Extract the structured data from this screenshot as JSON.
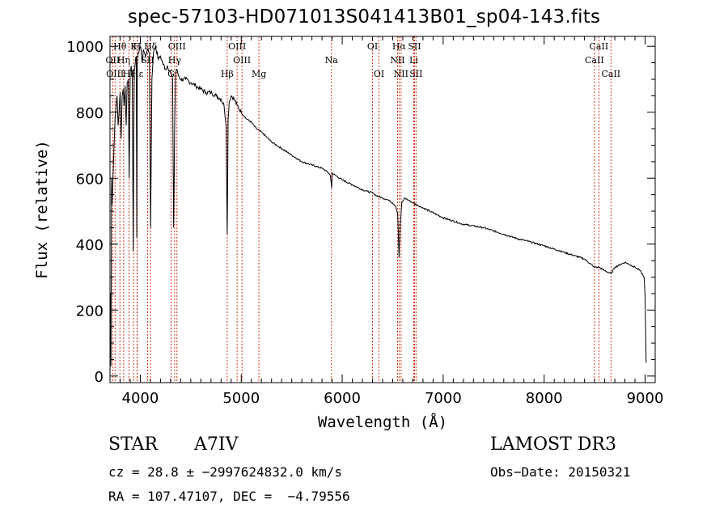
{
  "chart_data": {
    "type": "line",
    "title": "spec-57103-HD071013S041413B01_sp04-143.fits",
    "xlabel": "Wavelength (Å)",
    "ylabel": "Flux (relative)",
    "xlim": [
      3700,
      9100
    ],
    "ylim": [
      -20,
      1030
    ],
    "xticks": [
      4000,
      5000,
      6000,
      7000,
      8000,
      9000
    ],
    "yticks": [
      0,
      200,
      400,
      600,
      800,
      1000
    ],
    "series": [
      {
        "name": "spectrum",
        "x": [
          3700,
          3705,
          3710,
          3715,
          3720,
          3730,
          3740,
          3750,
          3760,
          3770,
          3780,
          3790,
          3800,
          3810,
          3820,
          3830,
          3840,
          3850,
          3860,
          3870,
          3880,
          3890,
          3900,
          3910,
          3920,
          3930,
          3935,
          3940,
          3950,
          3960,
          3965,
          3970,
          3980,
          3990,
          4000,
          4010,
          4020,
          4030,
          4050,
          4070,
          4090,
          4102,
          4115,
          4130,
          4150,
          4180,
          4200,
          4220,
          4250,
          4270,
          4300,
          4320,
          4330,
          4340,
          4350,
          4360,
          4380,
          4400,
          4450,
          4500,
          4550,
          4600,
          4650,
          4700,
          4750,
          4800,
          4830,
          4850,
          4861,
          4870,
          4880,
          4900,
          4930,
          4960,
          5000,
          5050,
          5100,
          5150,
          5200,
          5250,
          5300,
          5350,
          5400,
          5500,
          5600,
          5700,
          5800,
          5850,
          5880,
          5890,
          5895,
          5900,
          5950,
          6000,
          6100,
          6200,
          6250,
          6300,
          6350,
          6400,
          6450,
          6500,
          6530,
          6550,
          6563,
          6575,
          6590,
          6620,
          6700,
          6800,
          6900,
          7000,
          7200,
          7400,
          7600,
          7700,
          7750,
          7800,
          8000,
          8200,
          8400,
          8498,
          8542,
          8600,
          8662,
          8700,
          8800,
          8900,
          8950,
          8990,
          9000,
          9010
        ],
        "values": [
          5,
          250,
          30,
          600,
          520,
          600,
          700,
          780,
          820,
          850,
          760,
          800,
          860,
          720,
          850,
          870,
          820,
          880,
          760,
          890,
          900,
          600,
          920,
          940,
          900,
          380,
          700,
          930,
          950,
          970,
          420,
          940,
          980,
          990,
          1000,
          980,
          950,
          990,
          970,
          990,
          980,
          450,
          900,
          980,
          1000,
          960,
          970,
          950,
          930,
          940,
          920,
          900,
          450,
          750,
          920,
          930,
          910,
          900,
          900,
          890,
          880,
          870,
          860,
          860,
          850,
          840,
          820,
          760,
          430,
          780,
          830,
          850,
          840,
          820,
          800,
          780,
          770,
          750,
          740,
          725,
          710,
          700,
          690,
          670,
          650,
          640,
          630,
          620,
          610,
          590,
          570,
          615,
          605,
          595,
          580,
          565,
          560,
          555,
          545,
          540,
          535,
          525,
          515,
          490,
          360,
          460,
          525,
          540,
          525,
          510,
          495,
          480,
          460,
          450,
          430,
          420,
          415,
          412,
          395,
          375,
          355,
          330,
          330,
          320,
          310,
          330,
          345,
          330,
          320,
          300,
          240,
          40
        ]
      }
    ],
    "line_labels": [
      {
        "text": "Hθ",
        "x": 3798,
        "row": 1
      },
      {
        "text": "K",
        "x": 3934,
        "row": 1
      },
      {
        "text": "H",
        "x": 3968,
        "row": 1
      },
      {
        "text": "Hδ",
        "x": 4102,
        "row": 1
      },
      {
        "text": "OIII",
        "x": 4363,
        "row": 1
      },
      {
        "text": "OIII",
        "x": 4959,
        "row": 1
      },
      {
        "text": "OI",
        "x": 6300,
        "row": 1
      },
      {
        "text": "Hα",
        "x": 6563,
        "row": 1
      },
      {
        "text": "SII",
        "x": 6716,
        "row": 1
      },
      {
        "text": "CaII",
        "x": 8542,
        "row": 1
      },
      {
        "text": "OII",
        "x": 3727,
        "row": 2
      },
      {
        "text": "Hη",
        "x": 3835,
        "row": 2
      },
      {
        "text": "SII",
        "x": 4072,
        "row": 2
      },
      {
        "text": "Hγ",
        "x": 4340,
        "row": 2
      },
      {
        "text": "OIII",
        "x": 5007,
        "row": 2
      },
      {
        "text": "Na",
        "x": 5893,
        "row": 2
      },
      {
        "text": "NII",
        "x": 6548,
        "row": 2
      },
      {
        "text": "Li",
        "x": 6708,
        "row": 2
      },
      {
        "text": "CaII",
        "x": 8498,
        "row": 2
      },
      {
        "text": "OIII",
        "x": 3750,
        "row": 3
      },
      {
        "text": "Hζ",
        "x": 3889,
        "row": 3
      },
      {
        "text": "Hε",
        "x": 3970,
        "row": 3
      },
      {
        "text": "G",
        "x": 4305,
        "row": 3
      },
      {
        "text": "Hβ",
        "x": 4861,
        "row": 3
      },
      {
        "text": "Mg",
        "x": 5175,
        "row": 3
      },
      {
        "text": "OI",
        "x": 6364,
        "row": 3
      },
      {
        "text": "NII",
        "x": 6583,
        "row": 3
      },
      {
        "text": "SII",
        "x": 6731,
        "row": 3
      },
      {
        "text": "CaII",
        "x": 8662,
        "row": 3
      }
    ],
    "line_markers": [
      3727,
      3750,
      3798,
      3835,
      3889,
      3934,
      3968,
      3970,
      4072,
      4102,
      4305,
      4340,
      4363,
      4861,
      4959,
      5007,
      5175,
      5893,
      6300,
      6364,
      6548,
      6563,
      6583,
      6708,
      6716,
      6731,
      8498,
      8542,
      8662
    ],
    "marker_color": "#cc2200"
  },
  "info": {
    "object_type": "STAR",
    "subclass": "A7IV",
    "survey": "LAMOST DR3",
    "cz": "cz = 28.8 ± −2997624832.0 km/s",
    "obs_date": "Obs−Date: 20150321",
    "coords": "RA = 107.47107, DEC =  −4.79556"
  }
}
